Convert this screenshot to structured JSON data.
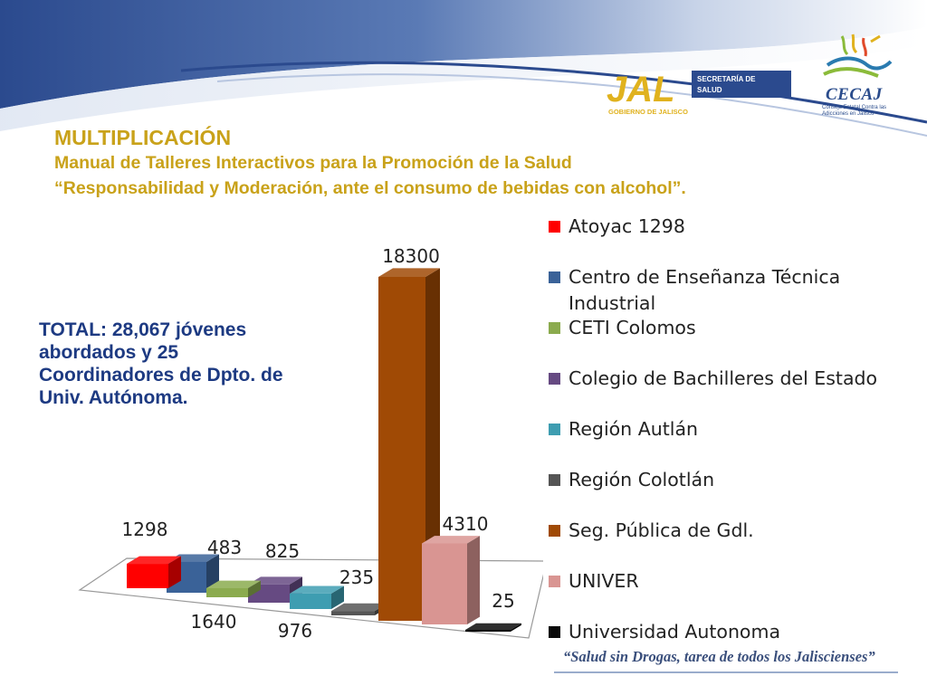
{
  "header": {
    "title": "MULTIPLICACIÓN",
    "subtitle_1": "Manual de Talleres Interactivos para la Promoción de la Salud",
    "subtitle_2": "“Responsabilidad y Moderación, ante el consumo de bebidas con alcohol”."
  },
  "logos": {
    "jal_text": "JAL",
    "jal_sub": "GOBIERNO DE JALISCO",
    "secretaria_line1": "SECRETARÍA DE",
    "secretaria_line2": "SALUD",
    "cecaj_name": "CECAJ",
    "cecaj_sub": "Consejo Estatal Contra las Adicciones en Jalisco"
  },
  "note": {
    "text": "TOTAL: 28,067 jóvenes abordados y 25 Coordinadores de Dpto. de Univ. Autónoma."
  },
  "footer": {
    "slogan": "“Salud sin Drogas, tarea de todos los Jaliscienses”"
  },
  "colors": {
    "heading": "#c9a21a",
    "note": "#1d3a82",
    "band_dark": "#2b4a8e",
    "band_light": "#dfe6f2"
  },
  "chart_data": {
    "type": "bar",
    "style": "3d-column",
    "legend_position": "right",
    "categories": [
      "Atoyac 1298",
      "Centro de Enseñanza Técnica Industrial",
      "CETI Colomos",
      "Colegio de Bachilleres del Estado",
      "Región Autlán",
      "Región Colotlán",
      "Seg. Pública de Gdl.",
      "UNIVER",
      "Universidad Autonoma"
    ],
    "values": [
      1298,
      1640,
      483,
      976,
      825,
      235,
      18300,
      4310,
      25
    ],
    "value_labels": [
      "1298",
      "1640",
      "483",
      "976",
      "825",
      "235",
      "18300",
      "4310",
      "25"
    ],
    "colors": [
      "#ff0000",
      "#3a6298",
      "#8bab4e",
      "#664a82",
      "#3e9db1",
      "#555555",
      "#a04a05",
      "#d99592",
      "#0a0a0a"
    ]
  }
}
